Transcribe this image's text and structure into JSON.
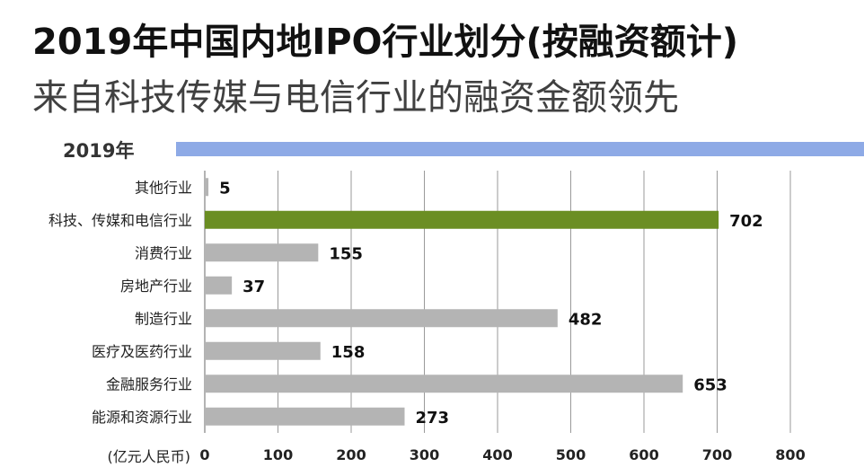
{
  "header": {
    "title": "2019年中国内地IPO行业划分(按融资额计)",
    "subtitle": "来自科技传媒与电信行业的融资金额领先",
    "year": "2019年"
  },
  "colors": {
    "bar_default": "#b4b4b4",
    "bar_highlight": "#6b8e23",
    "strip": "#8eaae6",
    "grid": "#9a9a9a"
  },
  "chart_data": {
    "type": "bar",
    "orientation": "horizontal",
    "categories": [
      "其他行业",
      "科技、传媒和电信行业",
      "消费行业",
      "房地产行业",
      "制造行业",
      "医疗及医药行业",
      "金融服务行业",
      "能源和资源行业"
    ],
    "values": [
      5,
      702,
      155,
      37,
      482,
      158,
      653,
      273
    ],
    "value_labels": [
      "5",
      "702",
      "155",
      "37",
      "482",
      "158",
      "653",
      "273"
    ],
    "highlight_index": 1,
    "xlim": [
      0,
      800
    ],
    "xticks": [
      "0",
      "100",
      "200",
      "300",
      "400",
      "500",
      "600",
      "700",
      "800"
    ],
    "unit_label": "(亿元人民币)",
    "grid": true
  }
}
